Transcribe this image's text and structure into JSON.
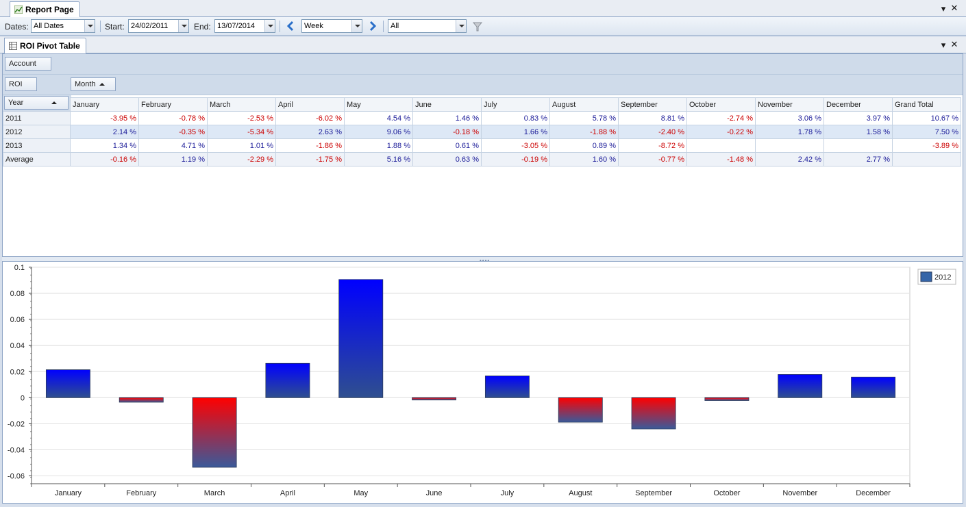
{
  "window": {
    "tab_title": "Report Page",
    "menu_label": "▾",
    "close_label": "✕"
  },
  "toolbar": {
    "dates_label": "Dates:",
    "dates_value": "All Dates",
    "start_label": "Start:",
    "start_value": "24/02/2011",
    "end_label": "End:",
    "end_value": "13/07/2014",
    "period_value": "Week",
    "filter_value": "All"
  },
  "pivot_tab": {
    "title": "ROI Pivot Table"
  },
  "pivot": {
    "filter_field": "Account",
    "data_field": "ROI",
    "column_field": "Month",
    "row_field": "Year",
    "columns": [
      "January",
      "February",
      "March",
      "April",
      "May",
      "June",
      "July",
      "August",
      "September",
      "October",
      "November",
      "December",
      "Grand Total"
    ],
    "rows": [
      {
        "label": "2011",
        "cells": [
          "-3.95 %",
          "-0.78 %",
          "-2.53 %",
          "-6.02 %",
          "4.54 %",
          "1.46 %",
          "0.83 %",
          "5.78 %",
          "8.81 %",
          "-2.74 %",
          "3.06 %",
          "3.97 %",
          "10.67 %"
        ]
      },
      {
        "label": "2012",
        "cells": [
          "2.14 %",
          "-0.35 %",
          "-5.34 %",
          "2.63 %",
          "9.06 %",
          "-0.18 %",
          "1.66 %",
          "-1.88 %",
          "-2.40 %",
          "-0.22 %",
          "1.78 %",
          "1.58 %",
          "7.50 %"
        ]
      },
      {
        "label": "2013",
        "cells": [
          "1.34 %",
          "4.71 %",
          "1.01 %",
          "-1.86 %",
          "1.88 %",
          "0.61 %",
          "-3.05 %",
          "0.89 %",
          "-8.72 %",
          "",
          "",
          "",
          "-3.89 %"
        ]
      },
      {
        "label": "Average",
        "cells": [
          "-0.16 %",
          "1.19 %",
          "-2.29 %",
          "-1.75 %",
          "5.16 %",
          "0.63 %",
          "-0.19 %",
          "1.60 %",
          "-0.77 %",
          "-1.48 %",
          "2.42 %",
          "2.77 %",
          ""
        ]
      }
    ]
  },
  "splitter": {
    "grip": "••••"
  },
  "colors": {
    "positive_top": "#0000ff",
    "positive_bottom": "#2f4f8f",
    "negative_top": "#ff0000",
    "negative_bottom": "#3a5a9a",
    "legend_swatch": "#3565a8"
  },
  "chart_data": {
    "type": "bar",
    "title": "",
    "xlabel": "",
    "ylabel": "",
    "categories": [
      "January",
      "February",
      "March",
      "April",
      "May",
      "June",
      "July",
      "August",
      "September",
      "October",
      "November",
      "December"
    ],
    "series": [
      {
        "name": "2012",
        "values": [
          0.0214,
          -0.0035,
          -0.0534,
          0.0263,
          0.0906,
          -0.0018,
          0.0166,
          -0.0188,
          -0.024,
          -0.0022,
          0.0178,
          0.0158
        ]
      }
    ],
    "ylim": [
      -0.066,
      0.1
    ],
    "yticks": [
      0.1,
      0.08,
      0.06,
      0.04,
      0.02,
      0,
      -0.02,
      -0.04,
      -0.06
    ],
    "ytick_labels": [
      "0.1",
      "0.08",
      "0.06",
      "0.04",
      "0.02",
      "0",
      "-0.02",
      "-0.04",
      "-0.06"
    ],
    "grid": true,
    "legend": "top-right"
  }
}
